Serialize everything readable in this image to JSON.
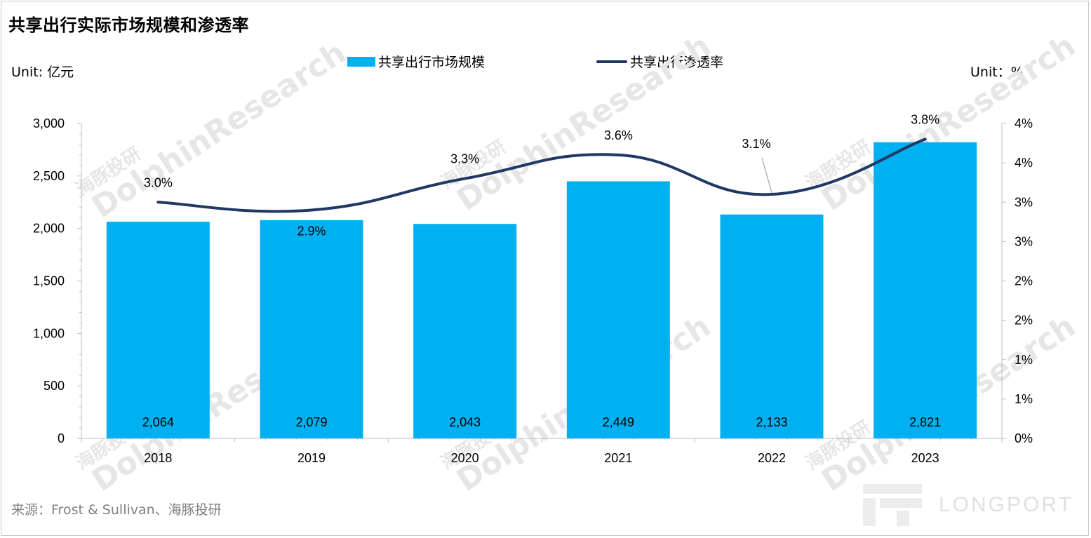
{
  "title": "共享出行实际市场规模和渗透率",
  "unit_left": "Unit: 亿元",
  "unit_right": "Unit：%",
  "source": "来源：Frost & Sullivan、海豚投研",
  "watermark": {
    "text_en": "DolphinResearch",
    "text_cn": "海豚投研",
    "brand": "LONGPORT"
  },
  "colors": {
    "bar": "#00b0f0",
    "line": "#203864",
    "axis": "#bfbfbf",
    "text": "#000000",
    "source": "#808080"
  },
  "chart_data": {
    "type": "bar",
    "categories": [
      "2018",
      "2019",
      "2020",
      "2021",
      "2022",
      "2023"
    ],
    "series": [
      {
        "name": "共享出行市场规模",
        "type": "bar",
        "axis": "left",
        "values": [
          2064,
          2079,
          2043,
          2449,
          2133,
          2821
        ],
        "labels": [
          "2,064",
          "2,079",
          "2,043",
          "2,449",
          "2,133",
          "2,821"
        ]
      },
      {
        "name": "共享出行渗透率",
        "type": "line",
        "axis": "right",
        "smooth": true,
        "values": [
          3.0,
          2.9,
          3.3,
          3.6,
          3.1,
          3.8
        ],
        "labels": [
          "3.0%",
          "2.9%",
          "3.3%",
          "3.6%",
          "3.1%",
          "3.8%"
        ]
      }
    ],
    "y_left": {
      "min": 0,
      "max": 3000,
      "ticks": [
        0,
        500,
        1000,
        1500,
        2000,
        2500,
        3000
      ],
      "tick_labels": [
        "0",
        "500",
        "1,000",
        "1,500",
        "2,000",
        "2,500",
        "3,000"
      ]
    },
    "y_right": {
      "min": 0,
      "max": 4,
      "ticks": [
        0,
        0.5,
        1,
        1.5,
        2,
        2.5,
        3,
        3.5,
        4
      ],
      "tick_labels": [
        "0%",
        "1%",
        "1%",
        "2%",
        "2%",
        "3%",
        "3%",
        "4%",
        "4%"
      ]
    },
    "grid": false,
    "legend_position": "top-center"
  }
}
